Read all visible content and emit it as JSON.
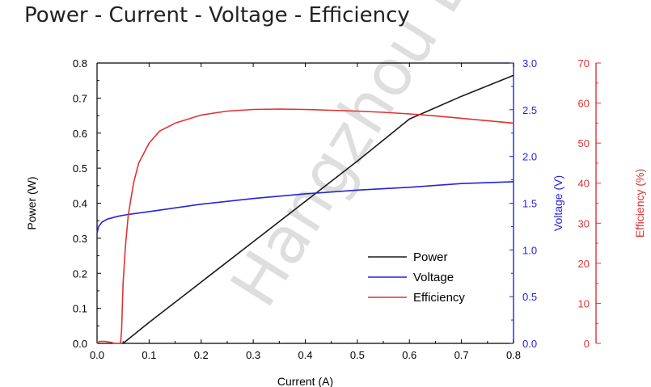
{
  "title": "Power - Current - Voltage - Efficiency",
  "watermark": "Hangzhou Bra",
  "colors": {
    "power": "#1a1a1a",
    "voltage": "#2323e0",
    "efficiency": "#e03232",
    "axis": "#000000"
  },
  "chart_data": {
    "type": "line",
    "title": "Power - Current - Voltage - Efficiency",
    "xlabel": "Current (A)",
    "ylabel_left": "Power (W)",
    "ylabel_right_1": "Voltage (V)",
    "ylabel_right_2": "Efficiency (%)",
    "xlim": [
      0,
      0.8
    ],
    "ylim_left": [
      0,
      0.8
    ],
    "ylim_right_1": [
      0,
      3.0
    ],
    "ylim_right_2": [
      0,
      70
    ],
    "x_ticks": [
      "0.0",
      "0.1",
      "0.2",
      "0.3",
      "0.4",
      "0.5",
      "0.6",
      "0.7",
      "0.8"
    ],
    "y_left_ticks": [
      "0.0",
      "0.1",
      "0.2",
      "0.3",
      "0.4",
      "0.5",
      "0.6",
      "0.7",
      "0.8"
    ],
    "y_right_1_ticks": [
      "0.0",
      "0.5",
      "1.0",
      "1.5",
      "2.0",
      "2.5",
      "3.0"
    ],
    "y_right_2_ticks": [
      "0",
      "10",
      "20",
      "30",
      "40",
      "50",
      "60",
      "70"
    ],
    "legend_position": "center-right",
    "series": [
      {
        "name": "Power",
        "axis": "left",
        "x": [
          0.05,
          0.1,
          0.2,
          0.3,
          0.4,
          0.5,
          0.6,
          0.7,
          0.8
        ],
        "y": [
          0.0,
          0.06,
          0.175,
          0.29,
          0.405,
          0.52,
          0.64,
          0.705,
          0.765
        ]
      },
      {
        "name": "Voltage",
        "axis": "right_1",
        "x": [
          0.0,
          0.003,
          0.01,
          0.02,
          0.04,
          0.06,
          0.1,
          0.15,
          0.2,
          0.3,
          0.4,
          0.5,
          0.6,
          0.7,
          0.8
        ],
        "y": [
          1.18,
          1.25,
          1.3,
          1.33,
          1.36,
          1.38,
          1.41,
          1.45,
          1.49,
          1.55,
          1.6,
          1.64,
          1.67,
          1.71,
          1.73
        ]
      },
      {
        "name": "Efficiency",
        "axis": "right_2",
        "x": [
          0.0,
          0.005,
          0.015,
          0.025,
          0.035,
          0.045,
          0.047,
          0.05,
          0.055,
          0.06,
          0.07,
          0.08,
          0.1,
          0.12,
          0.15,
          0.2,
          0.25,
          0.3,
          0.35,
          0.4,
          0.45,
          0.5,
          0.55,
          0.6,
          0.65,
          0.7,
          0.75,
          0.8
        ],
        "y": [
          0,
          0.5,
          0.5,
          0.3,
          0,
          0,
          3,
          15,
          25,
          32,
          40,
          45,
          50,
          53,
          55,
          57,
          58,
          58.4,
          58.5,
          58.4,
          58.2,
          58,
          57.7,
          57.3,
          56.8,
          56.2,
          55.6,
          55
        ]
      }
    ]
  }
}
